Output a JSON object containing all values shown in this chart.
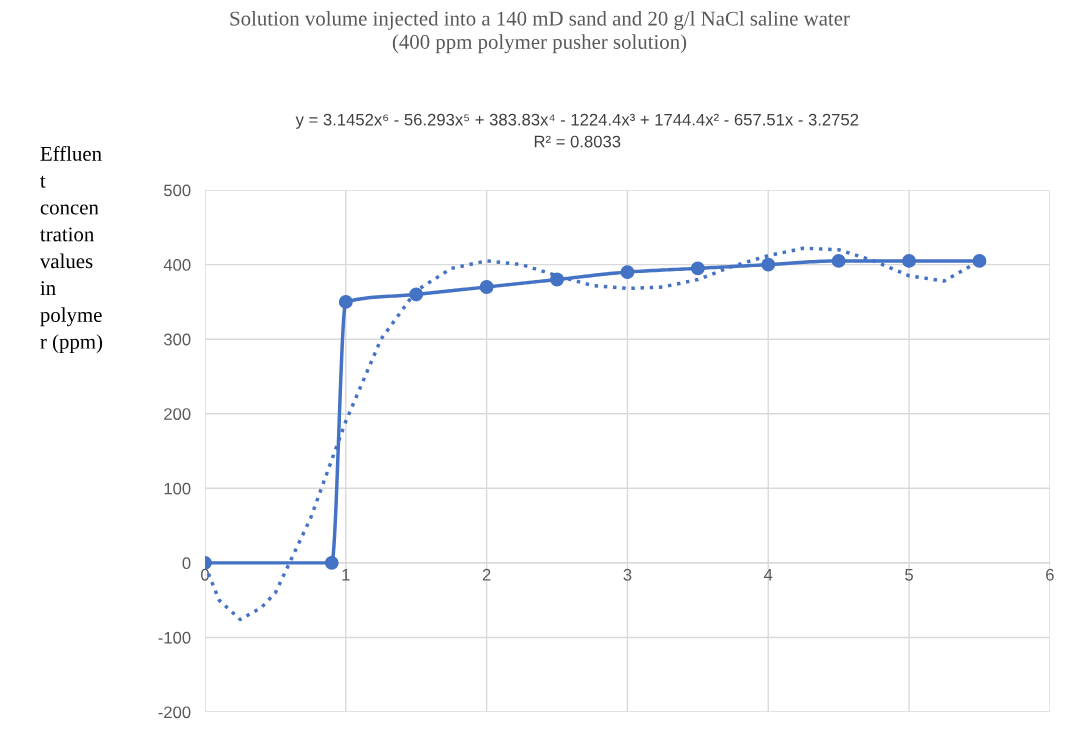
{
  "chart_data": {
    "type": "line",
    "title": "Solution volume injected into a 140 mD sand and 20 g/l NaCl saline water\n(400 ppm polymer pusher solution)",
    "ylabel": "Effluen\nt\nconcen\ntration\nvalues\nin\npolyme\nr (ppm)",
    "annotations": [
      "y = 3.1452x⁶ - 56.293x⁵ + 383.83x⁴ - 1224.4x³ + 1744.4x² - 657.51x - 3.2752",
      "R² = 0.8033"
    ],
    "xlim": [
      0,
      6
    ],
    "xticks": [
      0,
      1,
      2,
      3,
      4,
      5,
      6
    ],
    "ylim": [
      -200,
      500
    ],
    "yticks": [
      -200,
      -100,
      0,
      100,
      200,
      300,
      400,
      500
    ],
    "grid": true,
    "series": [
      {
        "color": "#4472c4",
        "marker": "circle",
        "line_style": "solid",
        "x": [
          0,
          0.9,
          1,
          1.5,
          2,
          2.5,
          3,
          3.5,
          4,
          4.5,
          5,
          5.5
        ],
        "values": [
          0,
          0,
          350,
          360,
          370,
          380,
          390,
          395,
          400,
          405,
          405,
          405
        ]
      },
      {
        "color": "#4472c4",
        "marker": "none",
        "line_style": "dotted",
        "x": [
          0,
          0.1,
          0.25,
          0.4,
          0.5,
          0.75,
          1,
          1.25,
          1.5,
          1.75,
          2,
          2.25,
          2.5,
          2.75,
          3,
          3.25,
          3.5,
          3.75,
          4,
          4.25,
          4.5,
          4.75,
          5,
          5.25,
          5.5
        ],
        "values": [
          -3,
          -50,
          -76,
          -60,
          -40,
          60,
          190,
          300,
          365,
          395,
          405,
          400,
          385,
          372,
          368,
          370,
          380,
          398,
          412,
          422,
          420,
          405,
          385,
          378,
          405
        ]
      }
    ]
  }
}
